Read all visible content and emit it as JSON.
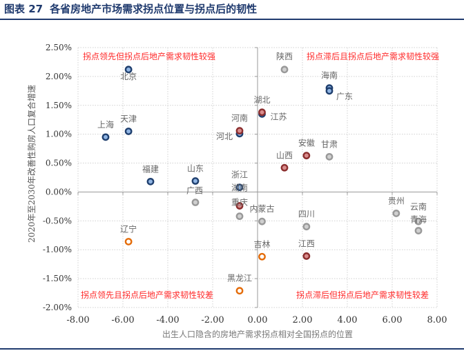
{
  "header": {
    "figure_no": "图表 27",
    "title": "各省房地产市场需求拐点位置与拐点后的韧性"
  },
  "chart_data": {
    "type": "scatter",
    "xlabel": "出生人口隐含的房地产需求拐点相对全国拐点的位置",
    "ylabel": "2020年至2030年改善性购房人口复合增速",
    "xlim": [
      -8,
      8
    ],
    "ylim": [
      -2.0,
      2.5
    ],
    "x_ticks": [
      "-8.00",
      "-6.00",
      "-4.00",
      "-2.00",
      "0.00",
      "2.00",
      "4.00",
      "6.00",
      "8.00"
    ],
    "y_ticks": [
      "2.50%",
      "2.00%",
      "1.50%",
      "1.00%",
      "0.50%",
      "0.00%",
      "-0.50%",
      "-1.00%",
      "-1.50%",
      "-2.00%"
    ],
    "grid": true,
    "quadrant_labels": {
      "top_left": "拐点领先但拐点后地产需求韧性较强",
      "top_right": "拐点滞后且拐点后地产需求韧性较强",
      "bottom_left": "拐点领先且拐点后地产需求韧性较差",
      "bottom_right": "拐点滞后但拐点后地产需求韧性较差"
    },
    "colors": {
      "blue": "#1f3f6e",
      "red": "#8b2e2e",
      "gray": "#999999",
      "orange": "#e46c0a",
      "quadrant_text": "#ff2a2a"
    },
    "points": [
      {
        "name": "北京",
        "x": -5.75,
        "y": 2.12,
        "group": "blue"
      },
      {
        "name": "天津",
        "x": -5.75,
        "y": 1.05,
        "group": "blue"
      },
      {
        "name": "上海",
        "x": -6.77,
        "y": 0.95,
        "group": "blue"
      },
      {
        "name": "福建",
        "x": -4.77,
        "y": 0.18,
        "group": "blue"
      },
      {
        "name": "山东",
        "x": -2.77,
        "y": 0.19,
        "group": "blue"
      },
      {
        "name": "广西",
        "x": -2.77,
        "y": -0.18,
        "group": "gray"
      },
      {
        "name": "浙江",
        "x": -0.8,
        "y": 0.08,
        "group": "blue"
      },
      {
        "name": "河北",
        "x": -0.8,
        "y": 1.01,
        "group": "blue"
      },
      {
        "name": "河南",
        "x": -0.8,
        "y": 1.06,
        "group": "red"
      },
      {
        "name": "江苏",
        "x": 0.2,
        "y": 1.35,
        "group": "blue"
      },
      {
        "name": "湖北",
        "x": 0.2,
        "y": 1.38,
        "group": "red"
      },
      {
        "name": "陕西",
        "x": 1.2,
        "y": 2.12,
        "group": "gray"
      },
      {
        "name": "海南",
        "x": 3.2,
        "y": 1.8,
        "group": "blue"
      },
      {
        "name": "广东",
        "x": 3.2,
        "y": 1.75,
        "group": "blue"
      },
      {
        "name": "安徽",
        "x": 2.18,
        "y": 0.63,
        "group": "red"
      },
      {
        "name": "甘肃",
        "x": 3.2,
        "y": 0.61,
        "group": "gray"
      },
      {
        "name": "山西",
        "x": 1.2,
        "y": 0.42,
        "group": "red"
      },
      {
        "name": "湖南",
        "x": -0.8,
        "y": -0.24,
        "group": "red"
      },
      {
        "name": "重庆",
        "x": -0.8,
        "y": -0.42,
        "group": "gray"
      },
      {
        "name": "内蒙古",
        "x": 0.2,
        "y": -0.51,
        "group": "gray"
      },
      {
        "name": "四川",
        "x": 2.18,
        "y": -0.6,
        "group": "gray"
      },
      {
        "name": "贵州",
        "x": 6.18,
        "y": -0.37,
        "group": "gray"
      },
      {
        "name": "云南",
        "x": 7.17,
        "y": -0.51,
        "group": "gray"
      },
      {
        "name": "青海",
        "x": 7.17,
        "y": -0.67,
        "group": "gray"
      },
      {
        "name": "辽宁",
        "x": -5.75,
        "y": -0.86,
        "group": "orange"
      },
      {
        "name": "吉林",
        "x": 0.2,
        "y": -1.12,
        "group": "orange"
      },
      {
        "name": "江西",
        "x": 2.18,
        "y": -1.11,
        "group": "red"
      },
      {
        "name": "黑龙江",
        "x": -0.8,
        "y": -1.71,
        "group": "orange"
      }
    ]
  }
}
